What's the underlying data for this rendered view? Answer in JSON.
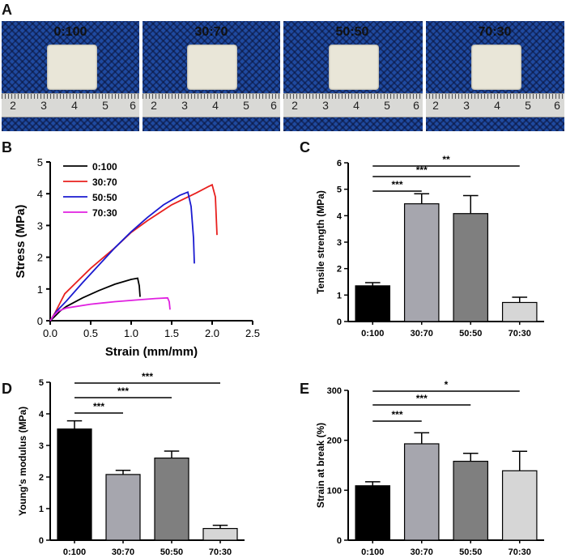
{
  "panel_labels": {
    "a": "A",
    "b": "B",
    "c": "C",
    "d": "D",
    "e": "E"
  },
  "photos": [
    {
      "label": "0:100",
      "ruler_numbers": [
        "2",
        "3",
        "4",
        "5",
        "6"
      ]
    },
    {
      "label": "30:70",
      "ruler_numbers": [
        "2",
        "3",
        "4",
        "5",
        "6"
      ]
    },
    {
      "label": "50:50",
      "ruler_numbers": [
        "2",
        "3",
        "4",
        "5",
        "6"
      ]
    },
    {
      "label": "70:30",
      "ruler_numbers": [
        "2",
        "3",
        "4",
        "5",
        "6"
      ]
    }
  ],
  "chart_data": [
    {
      "panel": "B",
      "type": "line",
      "xlabel": "Strain (mm/mm)",
      "ylabel": "Stress (MPa)",
      "xlim": [
        0,
        2.5
      ],
      "ylim": [
        0,
        5
      ],
      "xticks": [
        "0.0",
        "0.5",
        "1.0",
        "1.5",
        "2.0",
        "2.5"
      ],
      "yticks": [
        "0",
        "1",
        "2",
        "3",
        "4",
        "5"
      ],
      "legend_position": "top-left",
      "series": [
        {
          "name": "0:100",
          "color": "#000000",
          "points": [
            [
              0,
              0
            ],
            [
              0.05,
              0.12
            ],
            [
              0.12,
              0.3
            ],
            [
              0.2,
              0.45
            ],
            [
              0.4,
              0.72
            ],
            [
              0.6,
              0.95
            ],
            [
              0.8,
              1.15
            ],
            [
              1.0,
              1.3
            ],
            [
              1.08,
              1.34
            ],
            [
              1.1,
              1.1
            ],
            [
              1.11,
              0.75
            ]
          ]
        },
        {
          "name": "30:70",
          "color": "#e8201e",
          "points": [
            [
              0,
              0
            ],
            [
              0.06,
              0.25
            ],
            [
              0.12,
              0.55
            ],
            [
              0.18,
              0.85
            ],
            [
              0.3,
              1.15
            ],
            [
              0.5,
              1.65
            ],
            [
              0.8,
              2.3
            ],
            [
              1.0,
              2.78
            ],
            [
              1.2,
              3.15
            ],
            [
              1.5,
              3.65
            ],
            [
              1.8,
              4.02
            ],
            [
              1.95,
              4.22
            ],
            [
              2.0,
              4.28
            ],
            [
              2.04,
              3.9
            ],
            [
              2.06,
              2.7
            ]
          ]
        },
        {
          "name": "50:50",
          "color": "#1a1ad0",
          "points": [
            [
              0,
              0
            ],
            [
              0.08,
              0.3
            ],
            [
              0.2,
              0.62
            ],
            [
              0.4,
              1.2
            ],
            [
              0.6,
              1.75
            ],
            [
              0.8,
              2.3
            ],
            [
              1.0,
              2.8
            ],
            [
              1.2,
              3.25
            ],
            [
              1.4,
              3.65
            ],
            [
              1.6,
              3.95
            ],
            [
              1.7,
              4.05
            ],
            [
              1.74,
              3.6
            ],
            [
              1.77,
              2.6
            ],
            [
              1.78,
              1.8
            ]
          ]
        },
        {
          "name": "70:30",
          "color": "#e020e0",
          "points": [
            [
              0,
              0
            ],
            [
              0.04,
              0.15
            ],
            [
              0.1,
              0.3
            ],
            [
              0.2,
              0.4
            ],
            [
              0.5,
              0.52
            ],
            [
              0.8,
              0.6
            ],
            [
              1.1,
              0.66
            ],
            [
              1.3,
              0.7
            ],
            [
              1.45,
              0.72
            ],
            [
              1.47,
              0.6
            ],
            [
              1.48,
              0.35
            ]
          ]
        }
      ]
    },
    {
      "panel": "C",
      "type": "bar",
      "ylabel": "Tensile strength (MPa)",
      "ylim": [
        0,
        6
      ],
      "yticks": [
        "0",
        "1",
        "2",
        "3",
        "4",
        "5",
        "6"
      ],
      "categories": [
        "0:100",
        "30:70",
        "50:50",
        "70:30"
      ],
      "values": [
        1.35,
        4.45,
        4.08,
        0.72
      ],
      "errors": [
        0.12,
        0.38,
        0.68,
        0.2
      ],
      "bar_colors": [
        "#000000",
        "#a6a6ae",
        "#7f7f7f",
        "#d6d6d6"
      ],
      "significance": [
        {
          "from": 0,
          "to": 1,
          "label": "***"
        },
        {
          "from": 0,
          "to": 2,
          "label": "***"
        },
        {
          "from": 0,
          "to": 3,
          "label": "**"
        }
      ]
    },
    {
      "panel": "D",
      "type": "bar",
      "ylabel": "Young's modulus (MPa)",
      "ylim": [
        0,
        5
      ],
      "yticks": [
        "0",
        "1",
        "2",
        "3",
        "4",
        "5"
      ],
      "categories": [
        "0:100",
        "30:70",
        "50:50",
        "70:30"
      ],
      "values": [
        3.52,
        2.08,
        2.6,
        0.37
      ],
      "errors": [
        0.26,
        0.13,
        0.22,
        0.1
      ],
      "bar_colors": [
        "#000000",
        "#a6a6ae",
        "#7f7f7f",
        "#d6d6d6"
      ],
      "significance": [
        {
          "from": 0,
          "to": 1,
          "label": "***"
        },
        {
          "from": 0,
          "to": 2,
          "label": "***"
        },
        {
          "from": 0,
          "to": 3,
          "label": "***"
        }
      ]
    },
    {
      "panel": "E",
      "type": "bar",
      "ylabel": "Strain at break (%)",
      "ylim": [
        0,
        300
      ],
      "yticks": [
        "0",
        "100",
        "200",
        "300"
      ],
      "categories": [
        "0:100",
        "30:70",
        "50:50",
        "70:30"
      ],
      "values": [
        109,
        193,
        158,
        139
      ],
      "errors": [
        8,
        22,
        16,
        39
      ],
      "bar_colors": [
        "#000000",
        "#a6a6ae",
        "#7f7f7f",
        "#d6d6d6"
      ],
      "significance": [
        {
          "from": 0,
          "to": 1,
          "label": "***"
        },
        {
          "from": 0,
          "to": 2,
          "label": "***"
        },
        {
          "from": 0,
          "to": 3,
          "label": "*"
        }
      ]
    }
  ]
}
